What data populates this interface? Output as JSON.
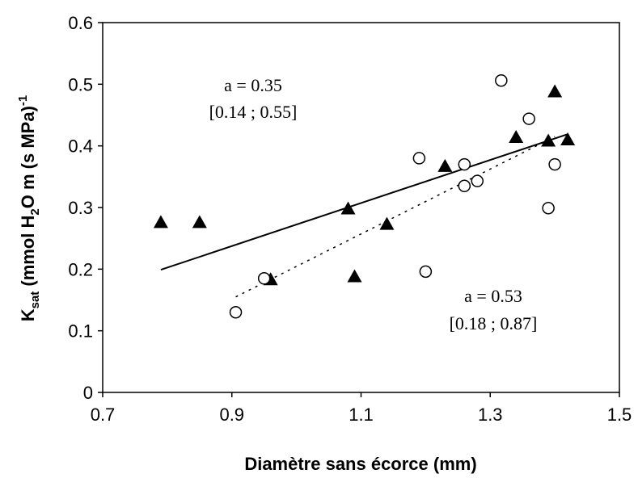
{
  "chart_data": {
    "type": "scatter",
    "title": "",
    "xlabel": "Diamètre sans écorce (mm)",
    "ylabel": {
      "k": "K",
      "k_sub": "sat",
      "mid1": " (mmol H",
      "h2o_sub": "2",
      "mid2": "O m (s MPa)",
      "exp": "-1"
    },
    "xlim": [
      0.7,
      1.5
    ],
    "ylim": [
      0,
      0.6
    ],
    "xticks": [
      "0.7",
      "0.9",
      "1.1",
      "1.3",
      "1.5"
    ],
    "yticks": [
      "0",
      "0.1",
      "0.2",
      "0.3",
      "0.4",
      "0.5",
      "0.6"
    ],
    "grid": false,
    "legend": "none",
    "series": [
      {
        "marker": "triangle-filled",
        "color": "#000000",
        "points": [
          [
            0.79,
            0.276
          ],
          [
            0.85,
            0.276
          ],
          [
            0.96,
            0.183
          ],
          [
            1.08,
            0.298
          ],
          [
            1.09,
            0.188
          ],
          [
            1.14,
            0.273
          ],
          [
            1.23,
            0.367
          ],
          [
            1.34,
            0.414
          ],
          [
            1.39,
            0.408
          ],
          [
            1.4,
            0.488
          ],
          [
            1.42,
            0.41
          ]
        ],
        "fit": {
          "style": "solid",
          "x": [
            0.79,
            1.42
          ],
          "y": [
            0.199,
            0.419
          ]
        }
      },
      {
        "marker": "circle-open",
        "color": "#000000",
        "points": [
          [
            0.906,
            0.13
          ],
          [
            0.95,
            0.185
          ],
          [
            1.19,
            0.38
          ],
          [
            1.2,
            0.196
          ],
          [
            1.26,
            0.37
          ],
          [
            1.26,
            0.335
          ],
          [
            1.28,
            0.343
          ],
          [
            1.317,
            0.506
          ],
          [
            1.36,
            0.444
          ],
          [
            1.39,
            0.299
          ],
          [
            1.4,
            0.37
          ]
        ],
        "fit": {
          "style": "dotted",
          "x": [
            0.906,
            1.4
          ],
          "y": [
            0.155,
            0.415
          ]
        }
      }
    ],
    "annotations": [
      {
        "line1": "a = 0.35",
        "line2": "[0.14 ; 0.55]"
      },
      {
        "line1": "a = 0.53",
        "line2": "[0.18 ; 0.87]"
      }
    ]
  }
}
